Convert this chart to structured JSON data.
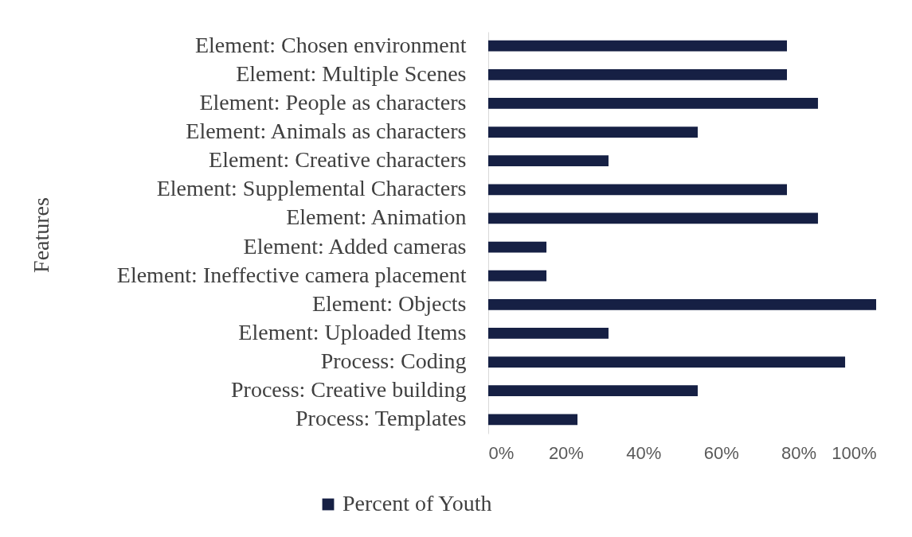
{
  "chart_data": {
    "type": "bar",
    "orientation": "horizontal",
    "ylabel": "Features",
    "categories": [
      "Element: Chosen environment",
      "Element: Multiple Scenes",
      "Element:  People as characters",
      "Element: Animals as characters",
      "Element: Creative characters",
      "Element: Supplemental Characters",
      "Element: Animation",
      "Element: Added cameras",
      "Element: Ineffective camera placement",
      "Element: Objects",
      "Element: Uploaded Items",
      "Process: Coding",
      "Process: Creative building",
      "Process: Templates"
    ],
    "series": [
      {
        "name": "Percent of Youth",
        "color": "#162044",
        "values": [
          77,
          77,
          85,
          54,
          31,
          77,
          85,
          15,
          15,
          100,
          31,
          92,
          54,
          23
        ]
      }
    ],
    "xlim": [
      0,
      100
    ],
    "xticks": [
      {
        "value": 0,
        "label": "0%"
      },
      {
        "value": 20,
        "label": "20%"
      },
      {
        "value": 40,
        "label": "40%"
      },
      {
        "value": 60,
        "label": "60%"
      },
      {
        "value": 80,
        "label": "80%"
      },
      {
        "value": 100,
        "label": "100%"
      }
    ],
    "grid": false,
    "legend": "bottom"
  }
}
